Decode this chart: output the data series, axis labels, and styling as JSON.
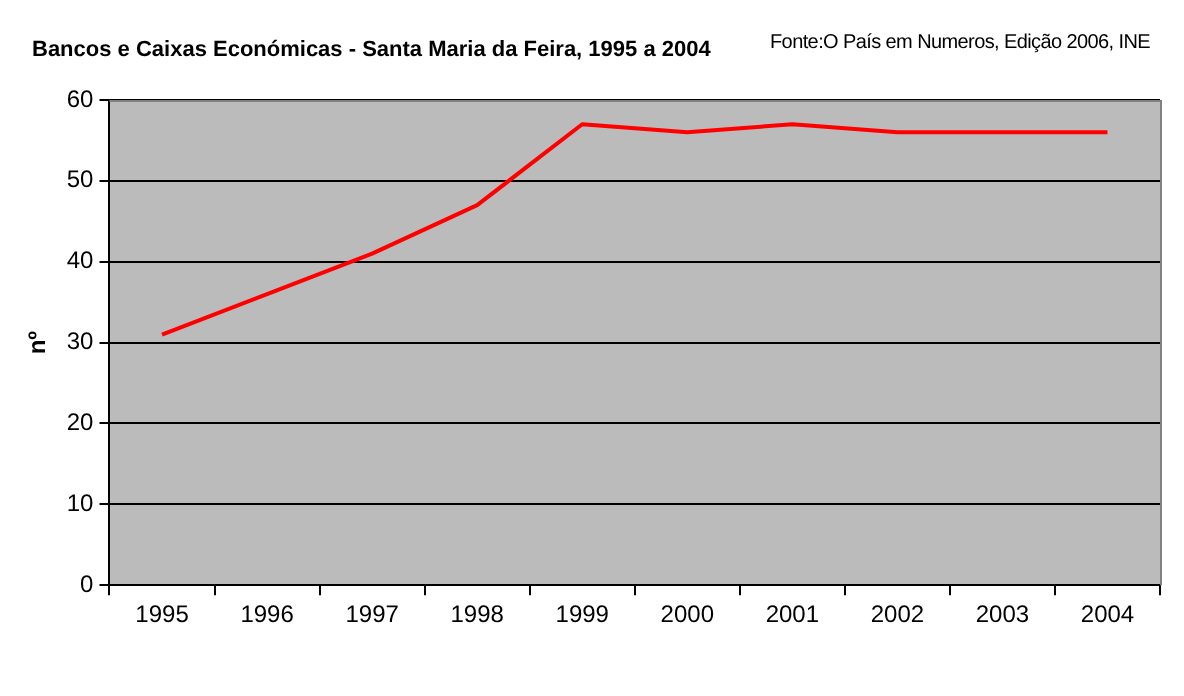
{
  "chart_data": {
    "type": "line",
    "title": "Bancos e Caixas Económicas - Santa Maria da Feira, 1995 a 2004",
    "annotations": [
      "Fonte:O País em Numeros, Edição 2006, INE"
    ],
    "ylabel": "nº",
    "categories": [
      "1995",
      "1996",
      "1997",
      "1998",
      "1999",
      "2000",
      "2001",
      "2002",
      "2003",
      "2004"
    ],
    "series": [
      {
        "color": "#ff0000",
        "values": [
          31,
          36,
          41,
          47,
          57,
          56,
          57,
          56,
          56,
          56
        ]
      }
    ],
    "ylim": [
      0,
      60
    ],
    "yticks": [
      0,
      10,
      20,
      30,
      40,
      50,
      60
    ],
    "grid": "y",
    "legend": false,
    "marker": "none",
    "line_style": "solid"
  }
}
